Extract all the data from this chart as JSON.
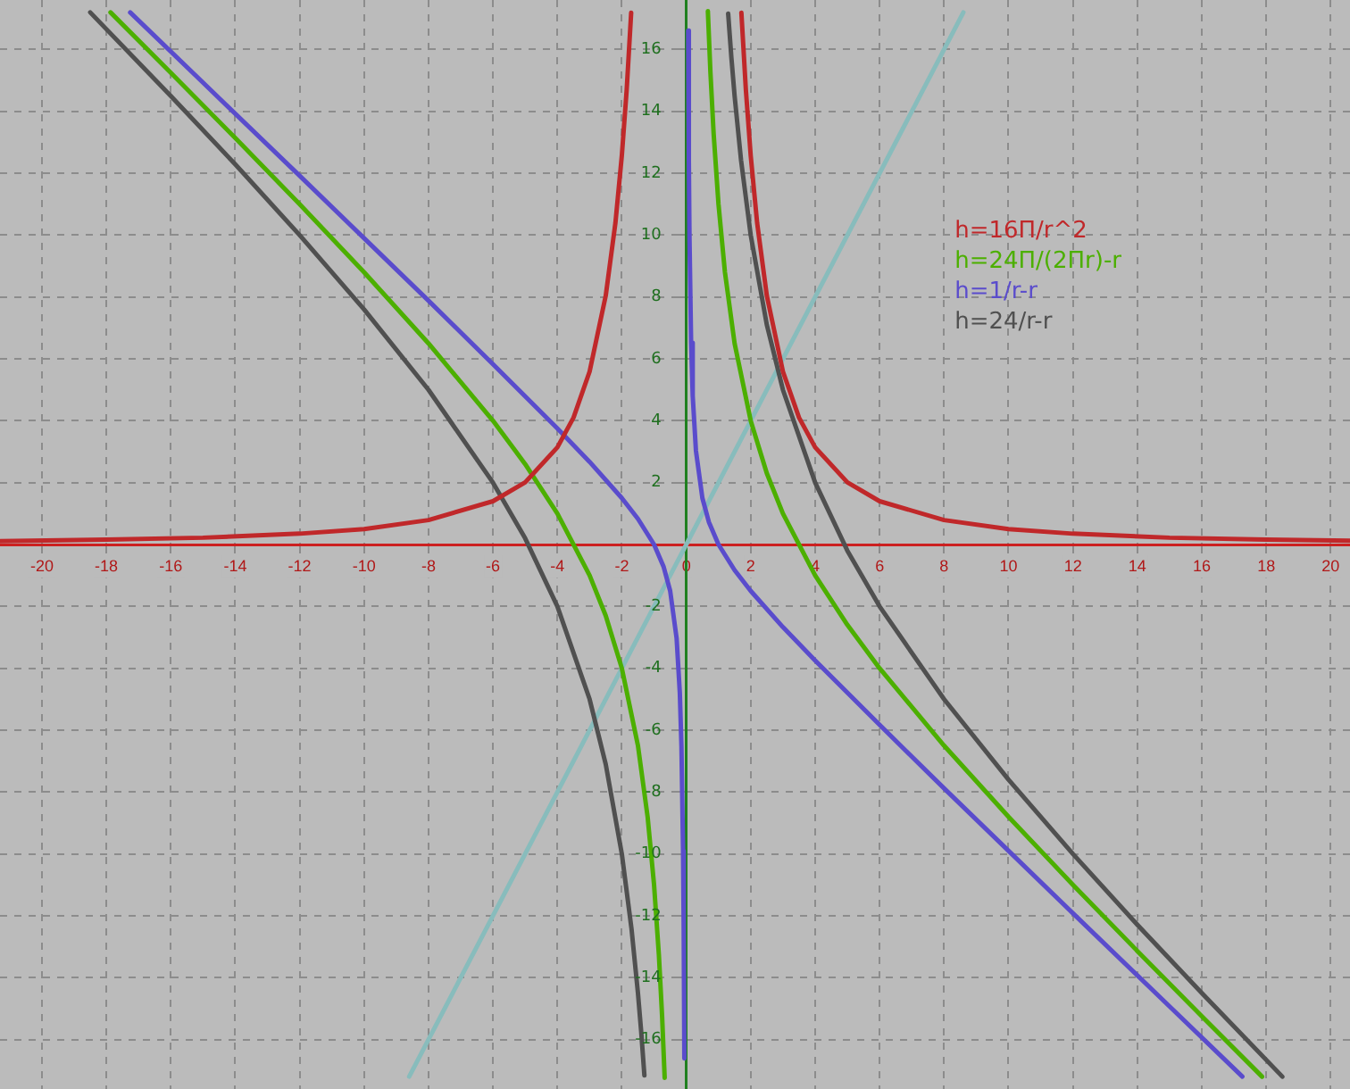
{
  "chart_data": {
    "type": "line",
    "xlim": [
      -21.3,
      20.6
    ],
    "ylim": [
      -17.6,
      17.6
    ],
    "xticks": [
      -20,
      -18,
      -16,
      -14,
      -12,
      -10,
      -8,
      -6,
      -4,
      -2,
      0,
      2,
      4,
      6,
      8,
      10,
      12,
      14,
      16,
      18,
      20
    ],
    "yticks": [
      -16,
      -14,
      -12,
      -10,
      -8,
      -6,
      -4,
      -2,
      {
        "value": 0,
        "label": null
      },
      2,
      4,
      6,
      8,
      10,
      12,
      14,
      16
    ],
    "grid": true,
    "legend": "top right",
    "marker": "none",
    "line_style": "solid",
    "series": [
      {
        "name": "h=16Π/r^2",
        "color": "#c0282a",
        "x": [
          -21.3,
          -18,
          -15,
          -12,
          -10,
          -8,
          -6,
          -5,
          -4,
          -3.5,
          -3,
          -2.5,
          -2.2,
          -2,
          -1.85,
          -1.71,
          0,
          1.71,
          1.85,
          2,
          2.2,
          2.5,
          3,
          3.5,
          4,
          5,
          6,
          8,
          10,
          12,
          15,
          18,
          20.6
        ],
        "values": [
          0.11,
          0.16,
          0.22,
          0.35,
          0.5,
          0.79,
          1.4,
          2.01,
          3.14,
          4.1,
          5.59,
          8.04,
          10.39,
          12.57,
          14.69,
          17.19,
          null,
          17.19,
          14.69,
          12.57,
          10.39,
          8.04,
          5.59,
          4.1,
          3.14,
          2.01,
          1.4,
          0.79,
          0.5,
          0.35,
          0.22,
          0.16,
          0.12
        ]
      },
      {
        "name": "h=24Π/(2Πr)-r",
        "color": "#4caf00",
        "x": [
          -17.87,
          -16,
          -14,
          -12,
          -10,
          -8,
          -6,
          -5,
          -4,
          -3,
          -2.5,
          -2,
          -1.5,
          -1.2,
          -1,
          -0.85,
          -0.75,
          -0.67,
          0,
          0.67,
          0.75,
          0.85,
          1,
          1.2,
          1.5,
          2,
          2.5,
          3,
          4,
          5,
          6,
          8,
          10,
          12,
          14,
          16,
          17.87
        ],
        "values": [
          17.2,
          15.25,
          13.14,
          11,
          8.8,
          6.5,
          4,
          2.6,
          1,
          -1,
          -2.3,
          -4,
          -6.5,
          -8.8,
          -11,
          -13.27,
          -15.25,
          -17.24,
          null,
          17.24,
          15.25,
          13.27,
          11,
          8.8,
          6.5,
          4,
          2.3,
          1,
          -1,
          -2.6,
          -4,
          -6.5,
          -8.8,
          -11,
          -13.14,
          -15.25,
          -17.2
        ]
      },
      {
        "name": "h=1/r-r",
        "color": "#5a4ccc",
        "x": [
          -17.26,
          -15,
          -12,
          -10,
          -8,
          -6,
          -4,
          -3,
          -2,
          -1.5,
          -1,
          -0.7,
          -0.5,
          -0.3,
          -0.2,
          -0.15,
          -0.1,
          -0.08,
          -0.06,
          0,
          0.06,
          0.08,
          0.1,
          0.15,
          0.2,
          0.3,
          0.5,
          0.7,
          1,
          1.5,
          2,
          3,
          4,
          6,
          8,
          10,
          12,
          15,
          17.26
        ],
        "values": [
          17.2,
          14.93,
          11.92,
          9.9,
          7.88,
          5.83,
          3.75,
          2.67,
          1.5,
          0.83,
          0,
          -0.73,
          -1.5,
          -3.03,
          -4.8,
          -6.52,
          -9.9,
          -12.42,
          -16.61,
          null,
          16.61,
          12.42,
          9.9,
          6.52,
          4.8,
          3.03,
          1.5,
          0.73,
          0,
          -0.83,
          -1.5,
          -2.67,
          -3.75,
          -5.83,
          -7.88,
          -9.9,
          -11.92,
          -14.93,
          -17.2
        ]
      },
      {
        "name": "h=24/r-r",
        "color": "#505050",
        "x": [
          -18.5,
          -16,
          -14,
          -12,
          -10,
          -8,
          -6,
          -5,
          -4,
          -3,
          -2.5,
          -2,
          -1.7,
          -1.5,
          -1.4,
          -1.3,
          0,
          1.3,
          1.4,
          1.5,
          1.7,
          2,
          2.5,
          3,
          4,
          5,
          6,
          8,
          10,
          12,
          14,
          16,
          18.5
        ],
        "values": [
          17.2,
          14.5,
          12.29,
          10,
          7.6,
          5,
          2,
          0.2,
          -2,
          -5,
          -7.1,
          -10,
          -12.42,
          -14.5,
          -15.74,
          -17.16,
          null,
          17.16,
          15.74,
          14.5,
          12.42,
          10,
          7.1,
          5,
          2,
          -0.2,
          -2,
          -5,
          -7.6,
          -10,
          -12.29,
          -14.5,
          -17.2
        ]
      },
      {
        "color": "#88bcbc",
        "x": [
          -8.6,
          8.6
        ],
        "values": [
          -17.2,
          17.2
        ]
      }
    ]
  }
}
